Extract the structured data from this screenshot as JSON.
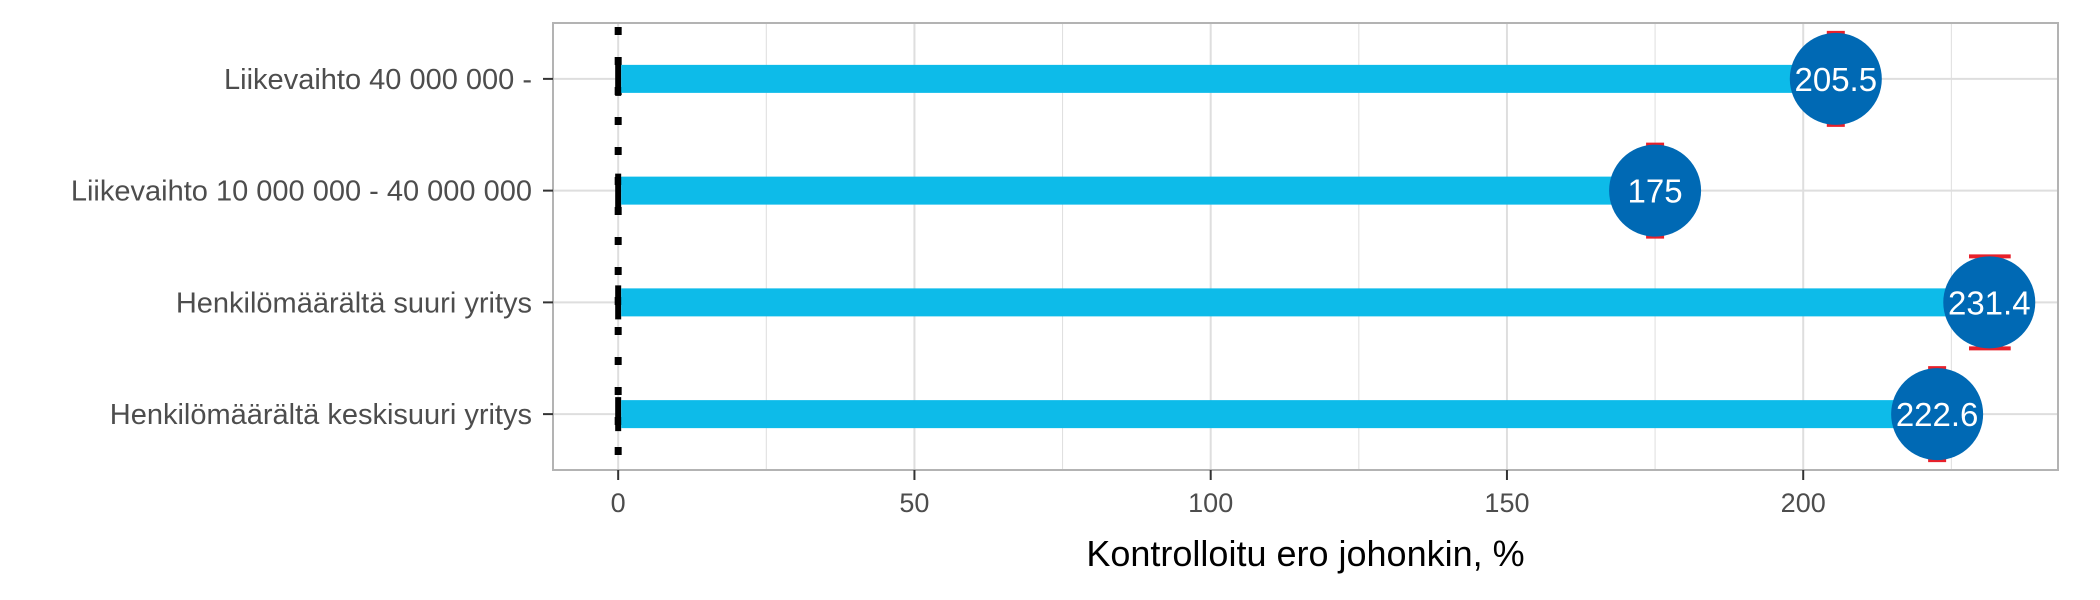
{
  "chart_data": {
    "type": "bar",
    "orientation": "horizontal",
    "categories": [
      "Liikevaihto 40 000 000 -",
      "Liikevaihto 10 000 000 - 40 000 000",
      "Henkilömäärältä suuri yritys",
      "Henkilömäärältä keskisuuri yritys"
    ],
    "values": [
      205.5,
      175,
      231.4,
      222.6
    ],
    "data_labels": [
      "205.5",
      "175",
      "231.4",
      "222.6"
    ],
    "error_bars": [
      [
        205.5,
        205.5
      ],
      [
        175,
        175
      ],
      [
        229.5,
        233.5
      ],
      [
        222.6,
        222.6
      ]
    ],
    "xlabel": "Kontrolloitu ero johonkin, %",
    "ylabel": "",
    "xlim": [
      -11,
      243
    ],
    "x_ticks": [
      0,
      50,
      100,
      150,
      200
    ],
    "x_tick_labels": [
      "0",
      "50",
      "100",
      "150",
      "200"
    ],
    "reference_line": 0,
    "grid": true,
    "colors": {
      "bar": "#0dbbe9",
      "marker": "#0069b4",
      "error": "#e8202a",
      "reference": "#000000",
      "grid": "#dedede",
      "panel_border": "#b3b3b3"
    }
  }
}
